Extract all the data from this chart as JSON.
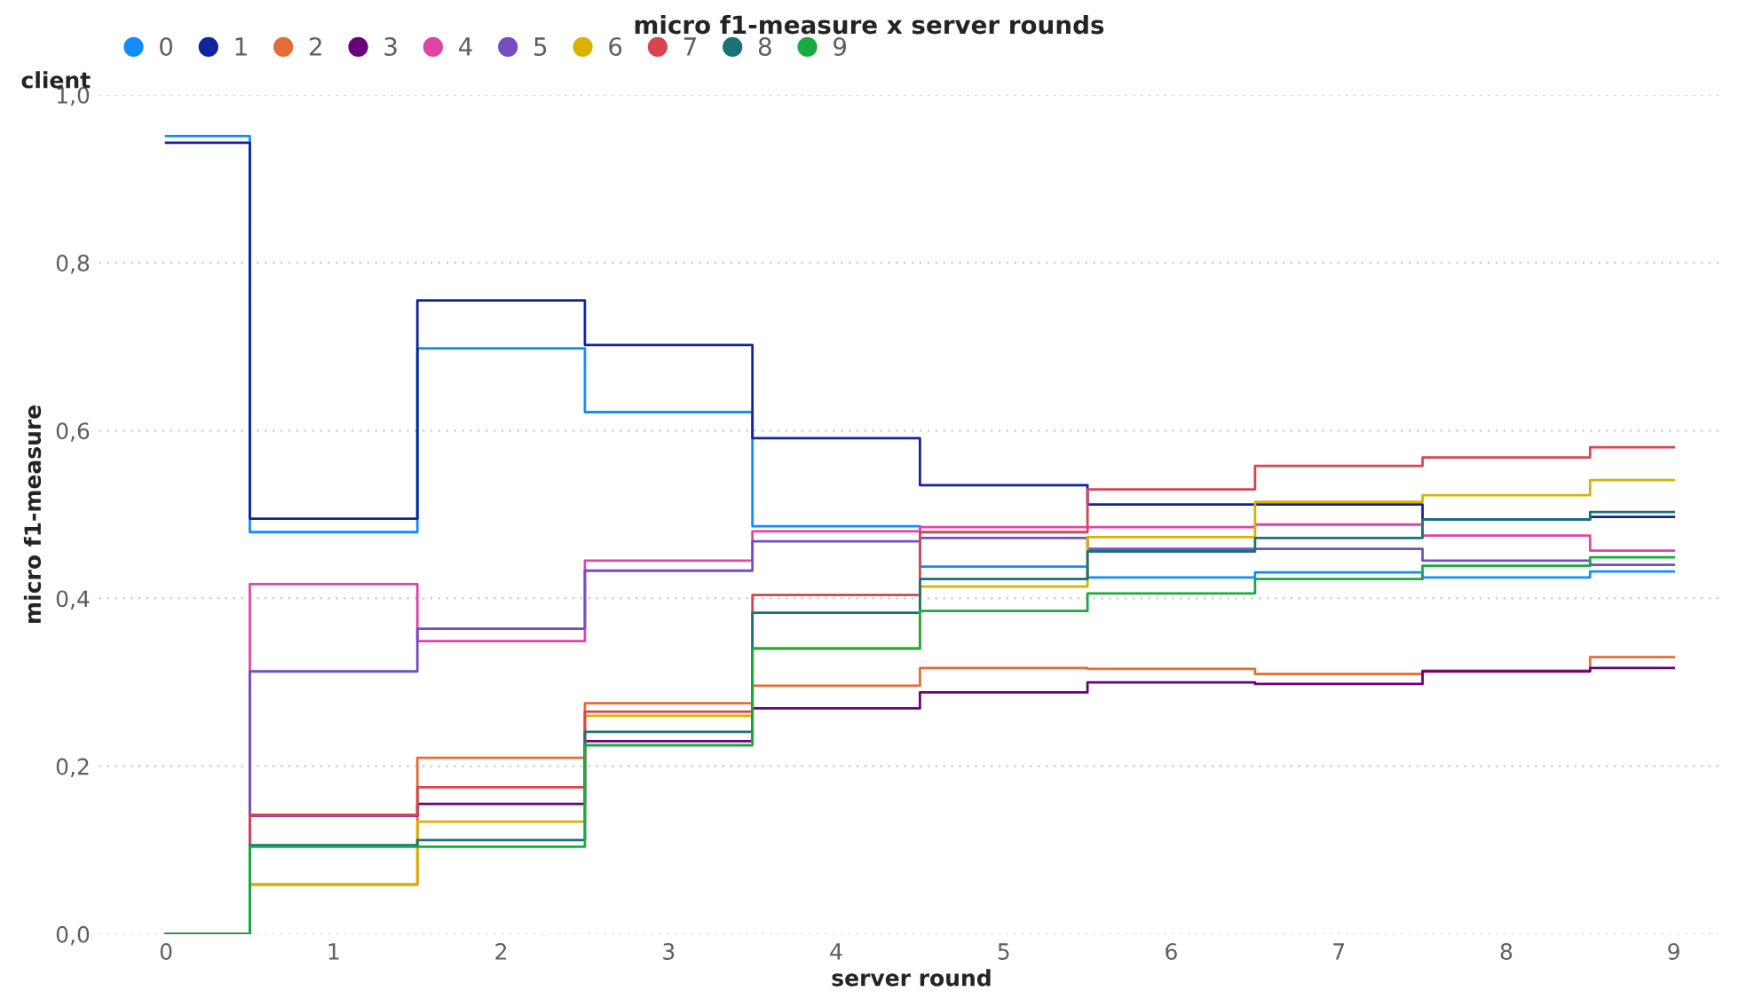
{
  "chart_data": {
    "type": "step",
    "title": "micro f1-measure x server rounds",
    "xlabel": "server round",
    "ylabel": "micro f1-measure",
    "legend_title": "client",
    "x": [
      0,
      1,
      2,
      3,
      4,
      5,
      6,
      7,
      8,
      9
    ],
    "series": [
      {
        "name": "0",
        "color": "#118dff",
        "values": [
          0.951,
          0.479,
          0.698,
          0.622,
          0.486,
          0.438,
          0.425,
          0.431,
          0.425,
          0.432
        ]
      },
      {
        "name": "1",
        "color": "#12239e",
        "values": [
          0.943,
          0.495,
          0.755,
          0.702,
          0.591,
          0.535,
          0.512,
          0.512,
          0.494,
          0.497
        ]
      },
      {
        "name": "2",
        "color": "#e66c37",
        "values": [
          0.0,
          0.059,
          0.21,
          0.275,
          0.296,
          0.317,
          0.316,
          0.31,
          0.314,
          0.33
        ]
      },
      {
        "name": "3",
        "color": "#6b007b",
        "values": [
          0.0,
          0.141,
          0.155,
          0.23,
          0.269,
          0.288,
          0.3,
          0.298,
          0.313,
          0.317
        ]
      },
      {
        "name": "4",
        "color": "#e044a7",
        "values": [
          0.0,
          0.417,
          0.349,
          0.445,
          0.48,
          0.485,
          0.485,
          0.488,
          0.475,
          0.457
        ]
      },
      {
        "name": "5",
        "color": "#744ec2",
        "values": [
          0.0,
          0.313,
          0.364,
          0.433,
          0.468,
          0.472,
          0.459,
          0.459,
          0.445,
          0.44
        ]
      },
      {
        "name": "6",
        "color": "#d9b300",
        "values": [
          0.0,
          0.059,
          0.134,
          0.26,
          0.341,
          0.414,
          0.473,
          0.515,
          0.523,
          0.541
        ]
      },
      {
        "name": "7",
        "color": "#d64550",
        "values": [
          0.0,
          0.142,
          0.175,
          0.265,
          0.404,
          0.479,
          0.53,
          0.558,
          0.568,
          0.58
        ]
      },
      {
        "name": "8",
        "color": "#197278",
        "values": [
          0.0,
          0.106,
          0.112,
          0.241,
          0.383,
          0.423,
          0.456,
          0.472,
          0.494,
          0.503
        ]
      },
      {
        "name": "9",
        "color": "#1aab40",
        "values": [
          0.0,
          0.104,
          0.104,
          0.225,
          0.34,
          0.385,
          0.406,
          0.423,
          0.439,
          0.449
        ]
      }
    ],
    "xlim": [
      -0.4,
      9.3
    ],
    "xticks": [
      0,
      1,
      2,
      3,
      4,
      5,
      6,
      7,
      8,
      9
    ],
    "ylim": [
      0,
      1.0
    ],
    "yticks": [
      {
        "value": 0,
        "label": "0,0"
      },
      {
        "value": 0.2,
        "label": "0,2"
      },
      {
        "value": 0.4,
        "label": "0,4"
      },
      {
        "value": 0.6,
        "label": "0,6"
      },
      {
        "value": 0.8,
        "label": "0,8"
      },
      {
        "value": 1.0,
        "label": "1,0"
      }
    ],
    "grid": "y",
    "legend": "top left",
    "marker": "none",
    "line_style": "solid"
  }
}
